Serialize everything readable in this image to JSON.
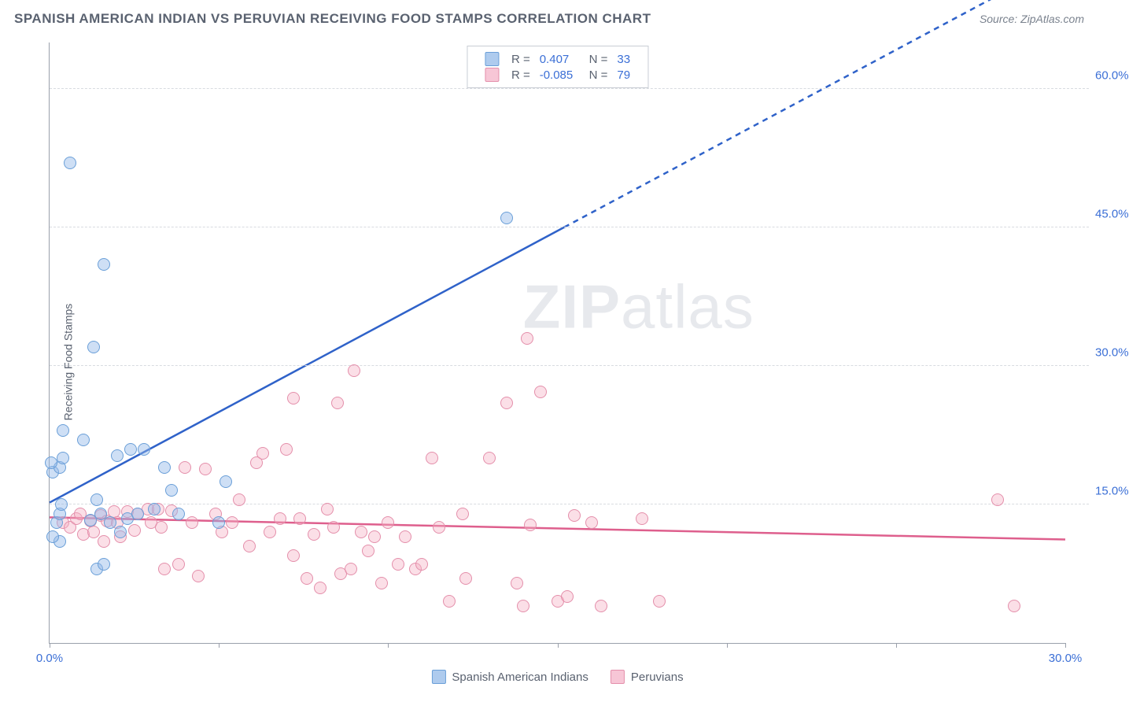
{
  "header": {
    "title": "SPANISH AMERICAN INDIAN VS PERUVIAN RECEIVING FOOD STAMPS CORRELATION CHART",
    "source": "Source: ZipAtlas.com"
  },
  "ylabel": "Receiving Food Stamps",
  "watermark": {
    "bold": "ZIP",
    "rest": "atlas"
  },
  "chart": {
    "type": "scatter",
    "background_color": "#ffffff",
    "grid_color": "#d8dbe0",
    "axis_color": "#9aa0ab",
    "tick_label_color": "#3b6fd6",
    "xlim": [
      0,
      30
    ],
    "ylim": [
      0,
      65
    ],
    "xticks": [
      0,
      5,
      10,
      15,
      20,
      25,
      30
    ],
    "xtick_labels": {
      "0": "0.0%",
      "30": "30.0%"
    },
    "yticks": [
      15,
      30,
      45,
      60
    ],
    "ytick_labels": {
      "15": "15.0%",
      "30": "30.0%",
      "45": "45.0%",
      "60": "60.0%"
    },
    "series": [
      {
        "key": "blue",
        "name": "Spanish American Indians",
        "marker_color_fill": "rgba(147,185,232,0.45)",
        "marker_color_stroke": "#6a9fd8",
        "marker_size": 16,
        "R": "0.407",
        "N": "33",
        "trend": {
          "visible": [
            [
              0,
              15.2
            ],
            [
              15.2,
              45.0
            ]
          ],
          "extended_to": [
            30,
            74
          ],
          "color": "#2f62c9",
          "width": 2.5,
          "dash_extended": "7 6"
        },
        "points": [
          [
            0.2,
            13.0
          ],
          [
            0.3,
            14.0
          ],
          [
            0.35,
            15.0
          ],
          [
            0.1,
            18.5
          ],
          [
            0.3,
            19.0
          ],
          [
            0.05,
            19.5
          ],
          [
            0.4,
            20.0
          ],
          [
            1.0,
            22.0
          ],
          [
            0.4,
            23.0
          ],
          [
            0.3,
            11.0
          ],
          [
            1.4,
            8.0
          ],
          [
            1.6,
            8.5
          ],
          [
            1.2,
            13.3
          ],
          [
            1.5,
            14.0
          ],
          [
            1.4,
            15.5
          ],
          [
            1.8,
            13.0
          ],
          [
            2.0,
            20.3
          ],
          [
            2.4,
            21.0
          ],
          [
            2.3,
            13.5
          ],
          [
            2.1,
            12.0
          ],
          [
            2.6,
            14.0
          ],
          [
            2.8,
            21.0
          ],
          [
            3.1,
            14.5
          ],
          [
            3.4,
            19.0
          ],
          [
            3.6,
            16.5
          ],
          [
            3.8,
            14.0
          ],
          [
            5.2,
            17.5
          ],
          [
            5.0,
            13.0
          ],
          [
            0.1,
            11.5
          ],
          [
            0.6,
            52.0
          ],
          [
            1.6,
            41.0
          ],
          [
            1.3,
            32.0
          ],
          [
            13.5,
            46.0
          ]
        ]
      },
      {
        "key": "pink",
        "name": "Peruvians",
        "marker_color_fill": "rgba(244,174,196,0.4)",
        "marker_color_stroke": "#e48fab",
        "marker_size": 16,
        "R": "-0.085",
        "N": "79",
        "trend": {
          "visible": [
            [
              0,
              13.6
            ],
            [
              30,
              11.2
            ]
          ],
          "color": "#de5f8d",
          "width": 2.5
        },
        "points": [
          [
            0.4,
            13.0
          ],
          [
            0.6,
            12.5
          ],
          [
            0.8,
            13.5
          ],
          [
            0.9,
            14.0
          ],
          [
            1.0,
            11.8
          ],
          [
            1.2,
            13.2
          ],
          [
            1.3,
            12.0
          ],
          [
            1.5,
            13.8
          ],
          [
            1.6,
            11.0
          ],
          [
            1.7,
            13.2
          ],
          [
            1.9,
            14.2
          ],
          [
            2.0,
            13.0
          ],
          [
            2.1,
            11.5
          ],
          [
            2.3,
            14.2
          ],
          [
            2.5,
            12.2
          ],
          [
            2.6,
            14.0
          ],
          [
            2.9,
            14.5
          ],
          [
            3.0,
            13.0
          ],
          [
            3.2,
            14.5
          ],
          [
            3.3,
            12.5
          ],
          [
            3.4,
            8.0
          ],
          [
            3.6,
            14.3
          ],
          [
            3.8,
            8.5
          ],
          [
            4.0,
            19.0
          ],
          [
            4.2,
            13.0
          ],
          [
            4.4,
            7.2
          ],
          [
            4.6,
            18.8
          ],
          [
            4.9,
            14.0
          ],
          [
            5.1,
            12.0
          ],
          [
            5.4,
            13.0
          ],
          [
            5.6,
            15.5
          ],
          [
            5.9,
            10.5
          ],
          [
            6.1,
            19.5
          ],
          [
            6.3,
            20.5
          ],
          [
            6.5,
            12.0
          ],
          [
            6.8,
            13.5
          ],
          [
            7.0,
            21.0
          ],
          [
            7.2,
            9.5
          ],
          [
            7.4,
            13.5
          ],
          [
            7.6,
            7.0
          ],
          [
            7.8,
            11.8
          ],
          [
            8.0,
            6.0
          ],
          [
            8.2,
            14.5
          ],
          [
            8.4,
            12.5
          ],
          [
            8.6,
            7.5
          ],
          [
            8.9,
            8.0
          ],
          [
            9.2,
            12.0
          ],
          [
            9.4,
            10.0
          ],
          [
            9.6,
            11.5
          ],
          [
            9.8,
            6.5
          ],
          [
            10.0,
            13.0
          ],
          [
            10.3,
            8.5
          ],
          [
            10.5,
            11.5
          ],
          [
            10.8,
            8.0
          ],
          [
            11.0,
            8.5
          ],
          [
            11.3,
            20.0
          ],
          [
            11.5,
            12.5
          ],
          [
            11.8,
            4.5
          ],
          [
            12.2,
            14.0
          ],
          [
            12.3,
            7.0
          ],
          [
            13.0,
            20.0
          ],
          [
            13.5,
            26.0
          ],
          [
            13.8,
            6.5
          ],
          [
            14.0,
            4.0
          ],
          [
            14.2,
            12.8
          ],
          [
            14.5,
            27.2
          ],
          [
            15.0,
            4.5
          ],
          [
            15.3,
            5.0
          ],
          [
            15.5,
            13.8
          ],
          [
            16.0,
            13.0
          ],
          [
            16.3,
            4.0
          ],
          [
            14.1,
            33.0
          ],
          [
            9.0,
            29.5
          ],
          [
            8.5,
            26.0
          ],
          [
            7.2,
            26.5
          ],
          [
            17.5,
            13.5
          ],
          [
            18.0,
            4.5
          ],
          [
            28.0,
            15.5
          ],
          [
            28.5,
            4.0
          ]
        ]
      }
    ],
    "legend_top": {
      "cols": [
        "R =",
        "N ="
      ]
    },
    "legend_bottom": [
      {
        "series_key": "blue"
      },
      {
        "series_key": "pink"
      }
    ]
  }
}
